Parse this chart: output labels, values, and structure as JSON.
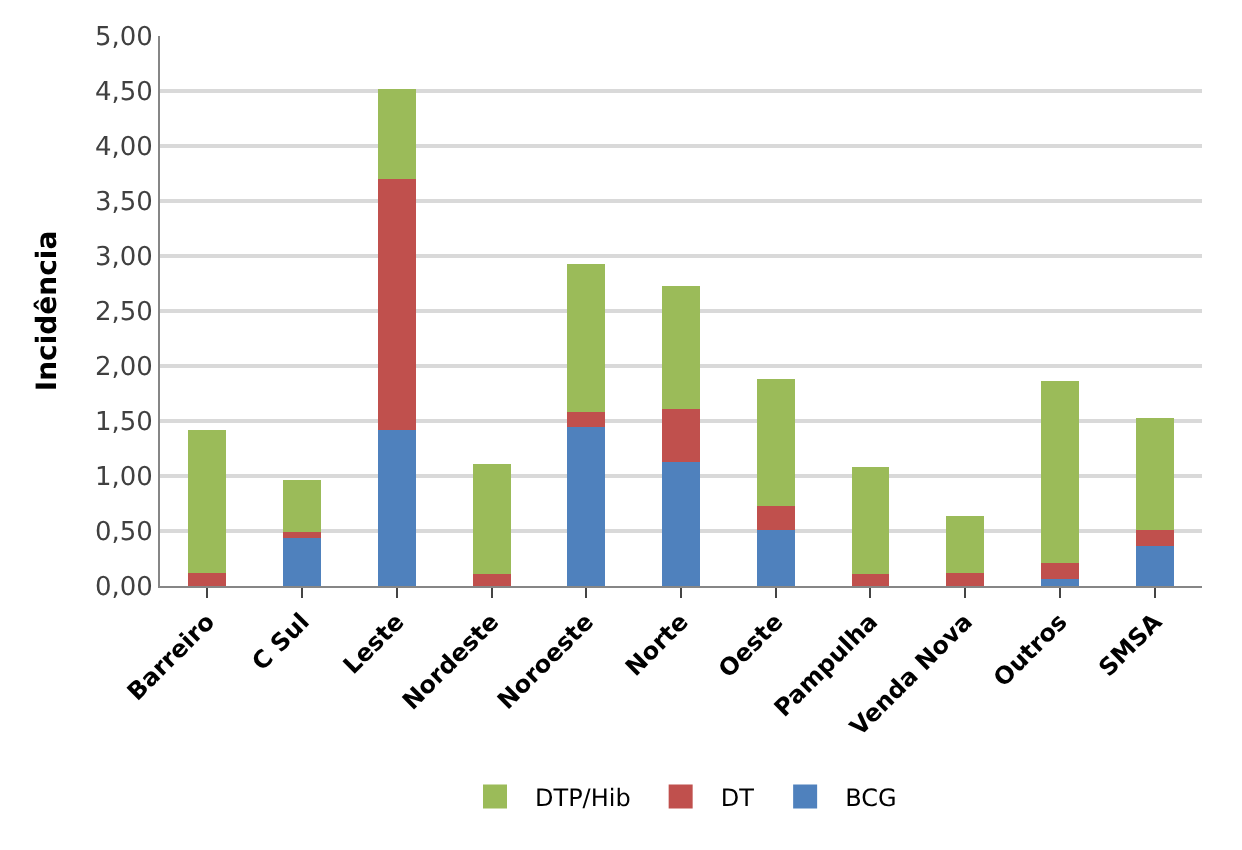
{
  "chart_data": {
    "type": "bar",
    "stacked": true,
    "ylabel": "Incidência",
    "categories": [
      "Barreiro",
      "C Sul",
      "Leste",
      "Nordeste",
      "Noroeste",
      "Norte",
      "Oeste",
      "Pampulha",
      "Venda Nova",
      "Outros",
      "SMSA"
    ],
    "series": [
      {
        "name": "BCG",
        "color": "#4f81bd",
        "values": [
          0,
          0.44,
          1.42,
          0,
          1.45,
          1.13,
          0.51,
          0,
          0,
          0.06,
          0.36
        ]
      },
      {
        "name": "DT",
        "color": "#c0504d",
        "values": [
          0.12,
          0.05,
          2.28,
          0.11,
          0.13,
          0.48,
          0.22,
          0.11,
          0.12,
          0.15,
          0.15
        ]
      },
      {
        "name": "DTP/Hib",
        "color": "#9bbb59",
        "values": [
          1.3,
          0.47,
          0.82,
          1.0,
          1.35,
          1.12,
          1.15,
          0.97,
          0.52,
          1.65,
          1.02
        ]
      }
    ],
    "ylim": [
      0,
      5
    ],
    "yticks": [
      {
        "value": 0,
        "label": "0,00"
      },
      {
        "value": 0.5,
        "label": "0,50"
      },
      {
        "value": 1,
        "label": "1,00"
      },
      {
        "value": 1.5,
        "label": "1,50"
      },
      {
        "value": 2,
        "label": "2,00"
      },
      {
        "value": 2.5,
        "label": "2,50"
      },
      {
        "value": 3,
        "label": "3,00"
      },
      {
        "value": 3.5,
        "label": "3,50"
      },
      {
        "value": 4,
        "label": "4,00"
      },
      {
        "value": 4.5,
        "label": "4,50"
      },
      {
        "value": 5,
        "label": "5,00"
      }
    ],
    "grid": "y",
    "legend": "bottom"
  }
}
